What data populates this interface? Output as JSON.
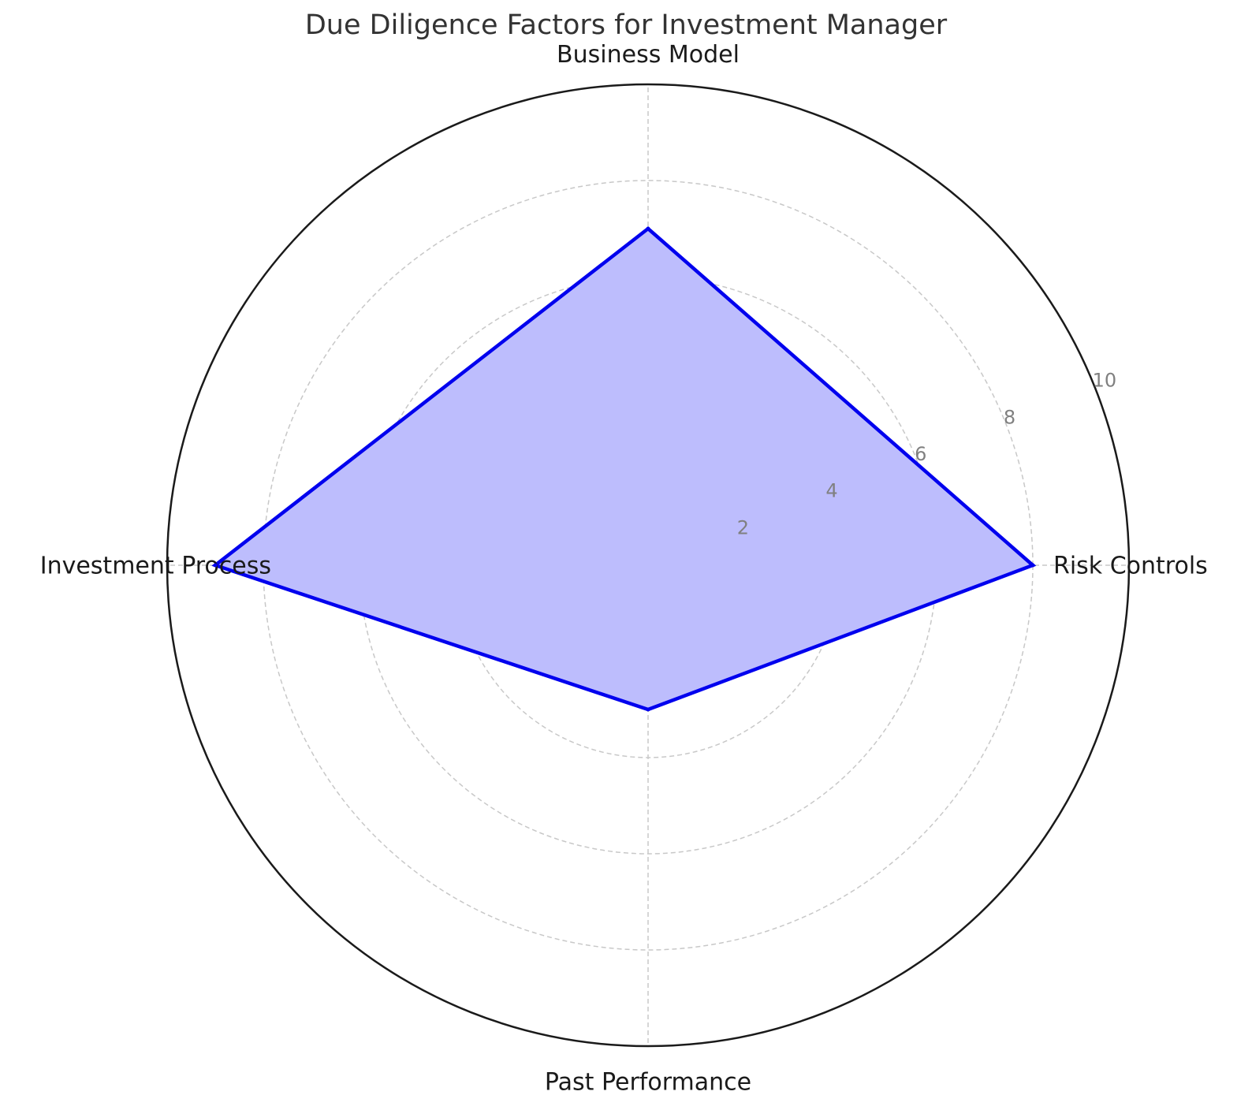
{
  "chart_data": {
    "type": "radar",
    "title": "Due Diligence Factors for Investment Manager",
    "categories": [
      "Risk Controls",
      "Business Model",
      "Investment Process",
      "Past Performance"
    ],
    "series": [
      {
        "values": [
          8,
          7,
          9,
          3
        ]
      }
    ],
    "rlim": [
      0,
      10
    ],
    "rticks": [
      "2",
      "4",
      "6",
      "8",
      "10"
    ],
    "grid": true,
    "colors": {
      "line": "#0000ee",
      "fill": "#bdbdfd",
      "grid": "#c8c8c8",
      "outer_ring": "#1a1a1a",
      "tick_label": "#808080",
      "category_label": "#1a1a1a"
    }
  }
}
